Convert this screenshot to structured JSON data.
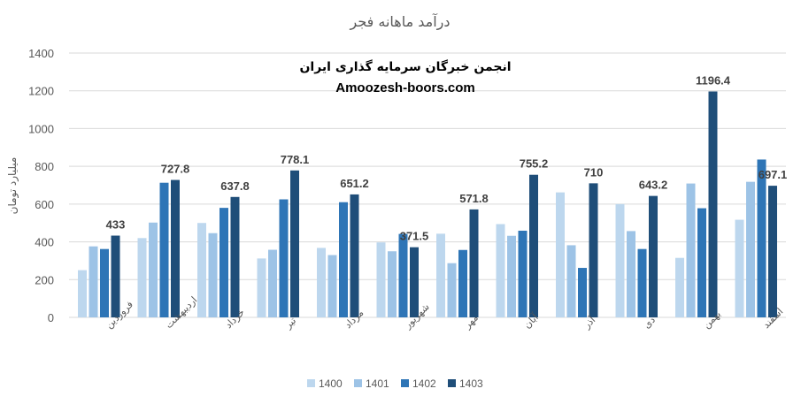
{
  "chart_data": {
    "type": "bar",
    "title": "درآمد ماهانه فجر",
    "ylabel": "میلیارد تومان",
    "xlabel": "",
    "ylim": [
      0,
      1400
    ],
    "yticks": [
      0,
      200,
      400,
      600,
      800,
      1000,
      1200,
      1400
    ],
    "grid": true,
    "legend": "bottom",
    "categories": [
      "فروردین",
      "اردیبهشت",
      "خرداد",
      "تیر",
      "مرداد",
      "شهریور",
      "مهر",
      "آبان",
      "آذر",
      "دی",
      "بهمن",
      "اسفند"
    ],
    "series": [
      {
        "name": "1400",
        "color": "#bdd7ee",
        "values": [
          250,
          420,
          500,
          312,
          368,
          397,
          443,
          494,
          662,
          600,
          315,
          517
        ]
      },
      {
        "name": "1401",
        "color": "#9dc3e6",
        "values": [
          376,
          502,
          446,
          358,
          330,
          350,
          287,
          432,
          382,
          457,
          709,
          718
        ]
      },
      {
        "name": "1402",
        "color": "#2e75b6",
        "values": [
          362,
          713,
          580,
          625,
          610,
          442,
          357,
          459,
          262,
          362,
          578,
          836
        ]
      },
      {
        "name": "1403",
        "color": "#1f4e79",
        "values": [
          433,
          727.8,
          637.8,
          778.1,
          651.2,
          371.5,
          571.8,
          755.2,
          710,
          643.2,
          1196.4,
          697.1
        ]
      }
    ],
    "data_labels": {
      "series": "1403",
      "values": [
        "433",
        "727.8",
        "637.8",
        "778.1",
        "651.2",
        "371.5",
        "571.8",
        "755.2",
        "710",
        "643.2",
        "1196.4",
        "697.1"
      ]
    }
  },
  "watermark": {
    "line1": "انجمن خبرگان سرمایه گذاری ایران",
    "line2": "Amoozesh-boors.com"
  }
}
